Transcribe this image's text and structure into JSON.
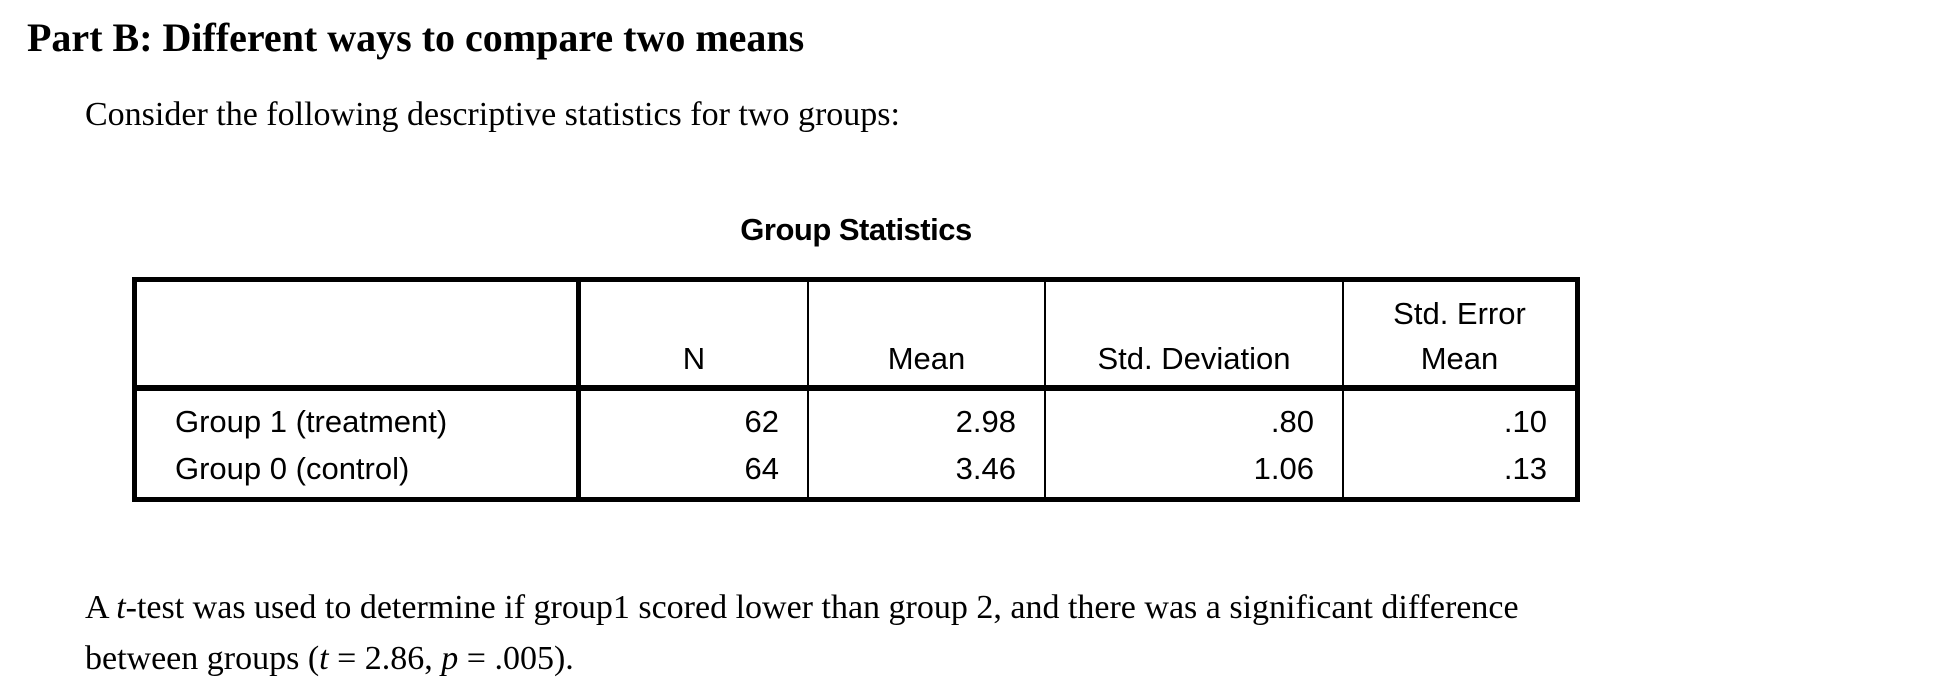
{
  "page": {
    "heading": "Part B: Different ways to compare two means",
    "intro": "Consider the following descriptive statistics for two groups:"
  },
  "group_statistics_table": {
    "title": "Group Statistics",
    "headers": {
      "row_label": "",
      "n": "N",
      "mean": "Mean",
      "std_deviation": "Std. Deviation",
      "std_error_mean_line1": "Std. Error",
      "std_error_mean_line2": "Mean"
    },
    "rows": [
      {
        "label": "Group 1 (treatment)",
        "n": "62",
        "mean": "2.98",
        "std_deviation": ".80",
        "std_error_mean": ".10"
      },
      {
        "label": "Group 0 (control)",
        "n": "64",
        "mean": "3.46",
        "std_deviation": "1.06",
        "std_error_mean": ".13"
      }
    ]
  },
  "conclusion": {
    "line1_pre": "A ",
    "line1_italic_t": "t",
    "line1_rest": "-test was used to determine if group1 scored lower than group 2, and there was a significant difference",
    "line2_pre": "between groups (",
    "line2_italic_t": "t",
    "line2_mid": " = 2.86, ",
    "line2_italic_p": "p",
    "line2_end": " = .005)."
  },
  "colors": {
    "text": "#000000",
    "background": "#ffffff",
    "table_border": "#000000"
  }
}
